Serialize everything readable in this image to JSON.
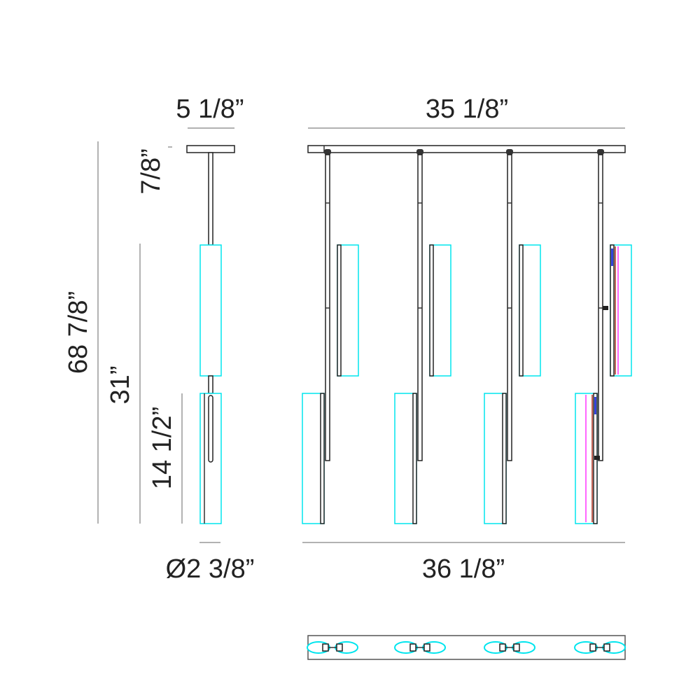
{
  "dimensions": {
    "canopy_width": "5 1/8”",
    "canopy_height": "7/8”",
    "overall_height": "68 7/8”",
    "upper_drop": "31”",
    "shade_length": "14 1/2”",
    "shade_diameter": "Ø2 3/8”",
    "canopy_length": "35 1/8”",
    "overall_width": "36 1/8”"
  },
  "colors": {
    "line": "#222222",
    "shade_outline": "#00e5ee",
    "highlight": "#ff33ff",
    "accent_red": "#b03020",
    "detail_blue": "#3344dd"
  },
  "front_view": {
    "pendant_count": 4
  }
}
